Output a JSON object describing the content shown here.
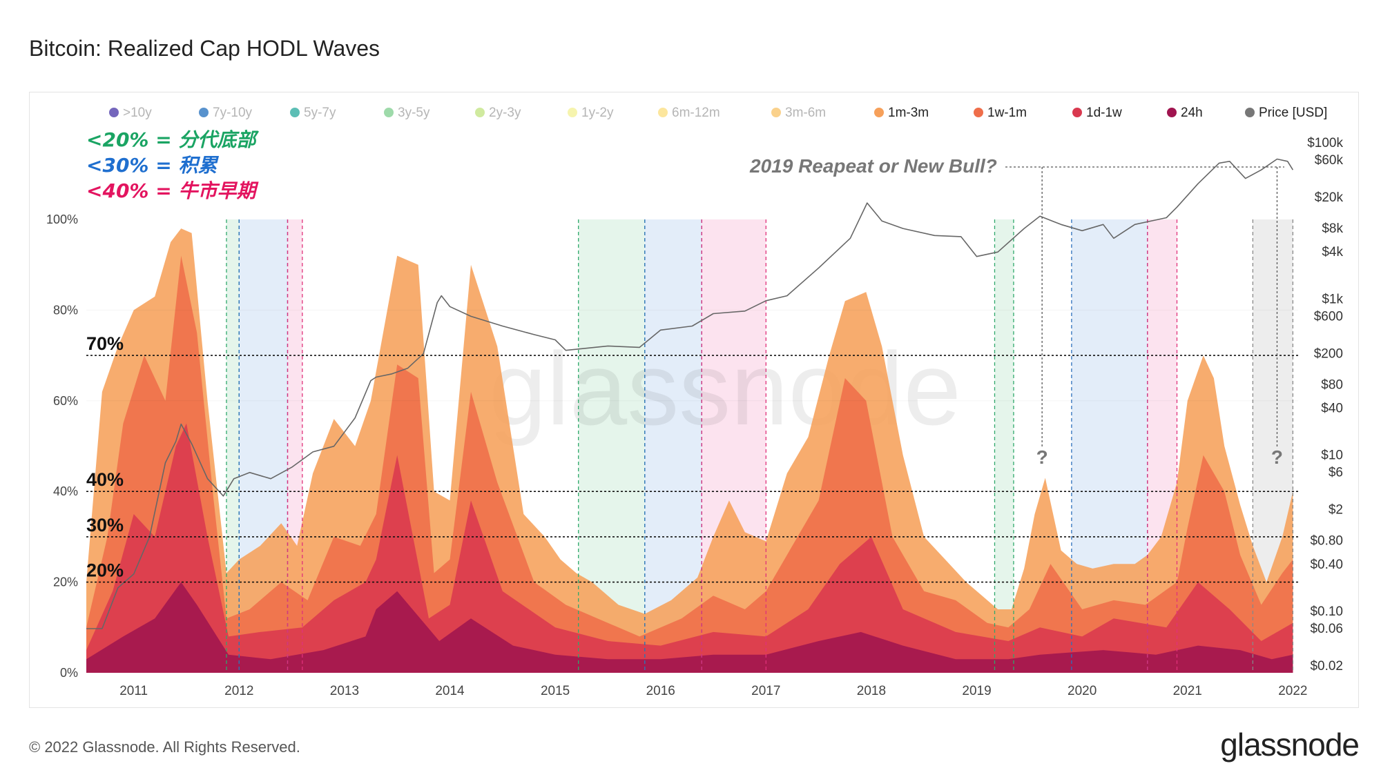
{
  "title": "Bitcoin: Realized Cap HODL Waves",
  "footer": {
    "copyright": "© 2022 Glassnode. All Rights Reserved.",
    "logo": "glassnode"
  },
  "watermark": "glassnode",
  "legend": [
    {
      "label": ">10y",
      "color": "#5c4bb0",
      "active": false
    },
    {
      "label": "7y-10y",
      "color": "#3b7fc4",
      "active": false
    },
    {
      "label": "5y-7y",
      "color": "#3fb3a8",
      "active": false
    },
    {
      "label": "3y-5y",
      "color": "#8dd49b",
      "active": false
    },
    {
      "label": "2y-3y",
      "color": "#c8e68e",
      "active": false
    },
    {
      "label": "1y-2y",
      "color": "#f5f2a0",
      "active": false
    },
    {
      "label": "6m-12m",
      "color": "#fbe28c",
      "active": false
    },
    {
      "label": "3m-6m",
      "color": "#f9c977",
      "active": false
    },
    {
      "label": "1m-3m",
      "color": "#f6a05a",
      "active": true
    },
    {
      "label": "1w-1m",
      "color": "#ef6e4a",
      "active": true
    },
    {
      "label": "1d-1w",
      "color": "#d9394f",
      "active": true
    },
    {
      "label": "24h",
      "color": "#a0144f",
      "active": true
    },
    {
      "label": "Price [USD]",
      "color": "#777777",
      "active": true
    }
  ],
  "annotations": {
    "callouts": [
      {
        "text": "<20% = 分代底部",
        "color": "#1aa463"
      },
      {
        "text": "<30% = 积累",
        "color": "#1f6fcf"
      },
      {
        "text": "<40% = 牛市早期",
        "color": "#e3145f"
      }
    ],
    "question": "2019 Reapeat or New Bull?",
    "question_mark": "?",
    "thresholds": [
      {
        "label": "70%",
        "value": 70
      },
      {
        "label": "40%",
        "value": 40
      },
      {
        "label": "30%",
        "value": 30
      },
      {
        "label": "20%",
        "value": 20
      }
    ]
  },
  "chart_data": {
    "type": "area",
    "title": "Bitcoin: Realized Cap HODL Waves",
    "x_ticks": [
      "2011",
      "2012",
      "2013",
      "2014",
      "2015",
      "2016",
      "2017",
      "2018",
      "2019",
      "2020",
      "2021",
      "2022"
    ],
    "x_range": [
      2010.55,
      2022.05
    ],
    "y_left": {
      "ticks": [
        "100%",
        "80%",
        "60%",
        "40%",
        "20%",
        "0%"
      ],
      "range": [
        0,
        100
      ]
    },
    "y_right": {
      "scale": "log",
      "ticks": [
        "$100k",
        "$60k",
        "$20k",
        "$8k",
        "$4k",
        "$1k",
        "$600",
        "$200",
        "$80",
        "$40",
        "$10",
        "$6",
        "$2",
        "$0.80",
        "$0.40",
        "$0.10",
        "$0.06",
        "$0.02"
      ],
      "tick_values": [
        100000,
        60000,
        20000,
        8000,
        4000,
        1000,
        600,
        200,
        80,
        40,
        10,
        6,
        2,
        0.8,
        0.4,
        0.1,
        0.06,
        0.02
      ]
    },
    "regions": [
      {
        "start": 2011.88,
        "end": 2012.0,
        "kind": "bottom"
      },
      {
        "start": 2012.0,
        "end": 2012.46,
        "kind": "accumulation"
      },
      {
        "start": 2012.46,
        "end": 2012.6,
        "kind": "early-bull"
      },
      {
        "start": 2015.22,
        "end": 2015.85,
        "kind": "bottom"
      },
      {
        "start": 2015.85,
        "end": 2016.39,
        "kind": "accumulation"
      },
      {
        "start": 2016.39,
        "end": 2017.0,
        "kind": "early-bull"
      },
      {
        "start": 2019.17,
        "end": 2019.35,
        "kind": "bottom"
      },
      {
        "start": 2019.9,
        "end": 2020.62,
        "kind": "accumulation"
      },
      {
        "start": 2020.62,
        "end": 2020.9,
        "kind": "early-bull"
      },
      {
        "start": 2021.62,
        "end": 2022.0,
        "kind": "current"
      }
    ],
    "series": [
      {
        "name": "1m-3m",
        "x": [
          2010.55,
          2010.7,
          2010.85,
          2011.0,
          2011.2,
          2011.35,
          2011.45,
          2011.55,
          2011.7,
          2011.88,
          2012.0,
          2012.2,
          2012.4,
          2012.55,
          2012.7,
          2012.9,
          2013.1,
          2013.25,
          2013.5,
          2013.7,
          2013.85,
          2014.0,
          2014.2,
          2014.45,
          2014.7,
          2014.9,
          2015.05,
          2015.2,
          2015.35,
          2015.6,
          2015.85,
          2016.1,
          2016.35,
          2016.5,
          2016.65,
          2016.8,
          2017.0,
          2017.2,
          2017.4,
          2017.6,
          2017.75,
          2017.95,
          2018.1,
          2018.3,
          2018.5,
          2018.7,
          2018.9,
          2019.05,
          2019.2,
          2019.33,
          2019.45,
          2019.55,
          2019.65,
          2019.8,
          2019.95,
          2020.1,
          2020.3,
          2020.5,
          2020.62,
          2020.75,
          2020.9,
          2021.0,
          2021.15,
          2021.25,
          2021.35,
          2021.5,
          2021.62,
          2021.75,
          2021.9,
          2022.0
        ],
        "values": [
          20,
          62,
          72,
          80,
          83,
          95,
          98,
          97,
          60,
          22,
          25,
          28,
          33,
          28,
          44,
          56,
          50,
          60,
          92,
          90,
          40,
          38,
          90,
          72,
          35,
          30,
          25,
          22,
          20,
          15,
          13,
          16,
          21,
          30,
          38,
          31,
          29,
          44,
          52,
          70,
          82,
          84,
          72,
          48,
          30,
          25,
          20,
          17,
          14,
          14,
          23,
          35,
          43,
          27,
          24,
          23,
          24,
          24,
          26,
          30,
          42,
          60,
          70,
          65,
          50,
          37,
          28,
          20,
          30,
          40
        ]
      },
      {
        "name": "1w-1m",
        "x": [
          2010.55,
          2010.75,
          2010.9,
          2011.1,
          2011.3,
          2011.45,
          2011.6,
          2011.75,
          2011.88,
          2012.1,
          2012.4,
          2012.65,
          2012.9,
          2013.15,
          2013.3,
          2013.5,
          2013.7,
          2013.85,
          2014.0,
          2014.2,
          2014.45,
          2014.8,
          2015.1,
          2015.4,
          2015.8,
          2016.2,
          2016.5,
          2016.8,
          2017.0,
          2017.2,
          2017.5,
          2017.75,
          2017.95,
          2018.2,
          2018.5,
          2018.8,
          2019.1,
          2019.3,
          2019.5,
          2019.7,
          2020.0,
          2020.3,
          2020.6,
          2020.9,
          2021.0,
          2021.15,
          2021.35,
          2021.5,
          2021.7,
          2021.9,
          2022.0
        ],
        "values": [
          10,
          30,
          55,
          70,
          60,
          92,
          75,
          40,
          12,
          14,
          20,
          16,
          30,
          28,
          35,
          68,
          65,
          22,
          25,
          62,
          42,
          20,
          15,
          12,
          8,
          12,
          17,
          14,
          18,
          26,
          38,
          65,
          60,
          30,
          18,
          16,
          11,
          10,
          14,
          24,
          14,
          16,
          15,
          20,
          32,
          48,
          40,
          26,
          15,
          22,
          25
        ]
      },
      {
        "name": "1d-1w",
        "x": [
          2010.55,
          2010.8,
          2011.0,
          2011.2,
          2011.4,
          2011.5,
          2011.7,
          2011.9,
          2012.2,
          2012.6,
          2012.9,
          2013.2,
          2013.3,
          2013.5,
          2013.8,
          2014.0,
          2014.2,
          2014.5,
          2015.0,
          2015.5,
          2016.0,
          2016.5,
          2017.0,
          2017.4,
          2017.7,
          2018.0,
          2018.3,
          2018.8,
          2019.3,
          2019.6,
          2020.0,
          2020.3,
          2020.8,
          2021.1,
          2021.4,
          2021.7,
          2022.0
        ],
        "values": [
          5,
          18,
          35,
          30,
          50,
          55,
          30,
          8,
          9,
          10,
          16,
          20,
          25,
          48,
          12,
          15,
          38,
          18,
          10,
          7,
          6,
          9,
          8,
          14,
          24,
          30,
          14,
          9,
          7,
          10,
          8,
          12,
          10,
          20,
          14,
          7,
          11
        ]
      },
      {
        "name": "24h",
        "x": [
          2010.55,
          2010.9,
          2011.2,
          2011.45,
          2011.6,
          2011.9,
          2012.3,
          2012.8,
          2013.2,
          2013.3,
          2013.5,
          2013.9,
          2014.2,
          2014.6,
          2015.0,
          2015.5,
          2016.0,
          2016.5,
          2017.0,
          2017.5,
          2017.9,
          2018.3,
          2018.8,
          2019.3,
          2019.6,
          2020.2,
          2020.7,
          2021.1,
          2021.5,
          2021.8,
          2022.0
        ],
        "values": [
          3,
          8,
          12,
          20,
          15,
          4,
          3,
          5,
          8,
          14,
          18,
          7,
          12,
          6,
          4,
          3,
          3,
          4,
          4,
          7,
          9,
          6,
          3,
          3,
          4,
          5,
          4,
          6,
          5,
          3,
          4
        ]
      }
    ],
    "price": {
      "name": "Price [USD]",
      "x": [
        2010.55,
        2010.7,
        2010.85,
        2011.0,
        2011.15,
        2011.3,
        2011.4,
        2011.45,
        2011.55,
        2011.7,
        2011.85,
        2011.95,
        2012.1,
        2012.3,
        2012.5,
        2012.7,
        2012.9,
        2013.1,
        2013.25,
        2013.3,
        2013.45,
        2013.6,
        2013.75,
        2013.88,
        2013.92,
        2014.0,
        2014.2,
        2014.5,
        2014.8,
        2015.0,
        2015.1,
        2015.5,
        2015.8,
        2016.0,
        2016.3,
        2016.5,
        2016.8,
        2017.0,
        2017.2,
        2017.5,
        2017.8,
        2017.96,
        2018.1,
        2018.3,
        2018.6,
        2018.85,
        2019.0,
        2019.2,
        2019.45,
        2019.6,
        2019.8,
        2020.0,
        2020.2,
        2020.3,
        2020.5,
        2020.8,
        2020.9,
        2021.1,
        2021.3,
        2021.4,
        2021.55,
        2021.7,
        2021.85,
        2021.95,
        2022.0
      ],
      "values": [
        0.06,
        0.06,
        0.2,
        0.3,
        0.9,
        8,
        15,
        25,
        14,
        5,
        3,
        5,
        6,
        5,
        7,
        11,
        13,
        30,
        90,
        100,
        110,
        130,
        200,
        900,
        1100,
        800,
        600,
        450,
        350,
        300,
        220,
        250,
        240,
        400,
        450,
        650,
        700,
        950,
        1100,
        2500,
        6000,
        17000,
        10000,
        8000,
        6500,
        6300,
        3500,
        4000,
        8000,
        11500,
        9000,
        7500,
        9000,
        6000,
        9000,
        11000,
        15000,
        30000,
        55000,
        58000,
        35000,
        45000,
        62000,
        58000,
        45000
      ]
    }
  }
}
